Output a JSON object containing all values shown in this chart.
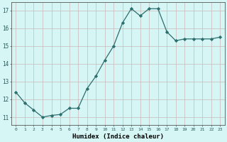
{
  "x": [
    0,
    1,
    2,
    3,
    4,
    5,
    6,
    7,
    8,
    9,
    10,
    11,
    12,
    13,
    14,
    15,
    16,
    17,
    18,
    19,
    20,
    21,
    22,
    23
  ],
  "y": [
    12.4,
    11.8,
    11.4,
    11.0,
    11.1,
    11.15,
    11.5,
    11.5,
    12.6,
    13.3,
    14.2,
    15.0,
    16.3,
    17.1,
    16.7,
    17.1,
    17.1,
    15.8,
    15.3,
    15.4,
    15.4,
    15.4,
    15.4,
    15.5
  ],
  "line_color": "#2d6e6e",
  "marker": "D",
  "marker_size": 2.2,
  "bg_color": "#d6f5f5",
  "grid_color": "#c8b8b8",
  "xlabel": "Humidex (Indice chaleur)",
  "ylabel_ticks": [
    11,
    12,
    13,
    14,
    15,
    16,
    17
  ],
  "xtick_labels": [
    "0",
    "1",
    "2",
    "3",
    "4",
    "5",
    "6",
    "7",
    "8",
    "9",
    "10",
    "11",
    "12",
    "13",
    "14",
    "15",
    "16",
    "17",
    "18",
    "19",
    "20",
    "21",
    "22",
    "23"
  ],
  "xlim": [
    -0.5,
    23.5
  ],
  "ylim": [
    10.55,
    17.45
  ]
}
